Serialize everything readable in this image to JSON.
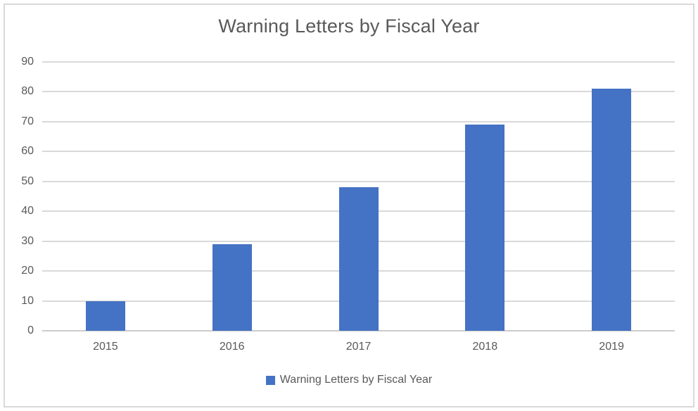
{
  "chart_data": {
    "type": "bar",
    "title": "Warning Letters by Fiscal Year",
    "categories": [
      "2015",
      "2016",
      "2017",
      "2018",
      "2019"
    ],
    "series": [
      {
        "name": "Warning Letters by Fiscal Year",
        "values": [
          10,
          29,
          48,
          69,
          81
        ]
      }
    ],
    "xlabel": "",
    "ylabel": "",
    "ylim": [
      0,
      90
    ],
    "yticks": [
      0,
      10,
      20,
      30,
      40,
      50,
      60,
      70,
      80,
      90
    ],
    "grid": true,
    "legend_position": "bottom",
    "bar_color": "#4472C4"
  },
  "legend": {
    "label": "Warning Letters by Fiscal Year",
    "marker_color": "#4472C4"
  },
  "colors": {
    "bar": "#4472C4",
    "gridline": "#D9D9D9",
    "text": "#595959",
    "frame_border": "#D9D9D9",
    "background": "#FFFFFF"
  }
}
